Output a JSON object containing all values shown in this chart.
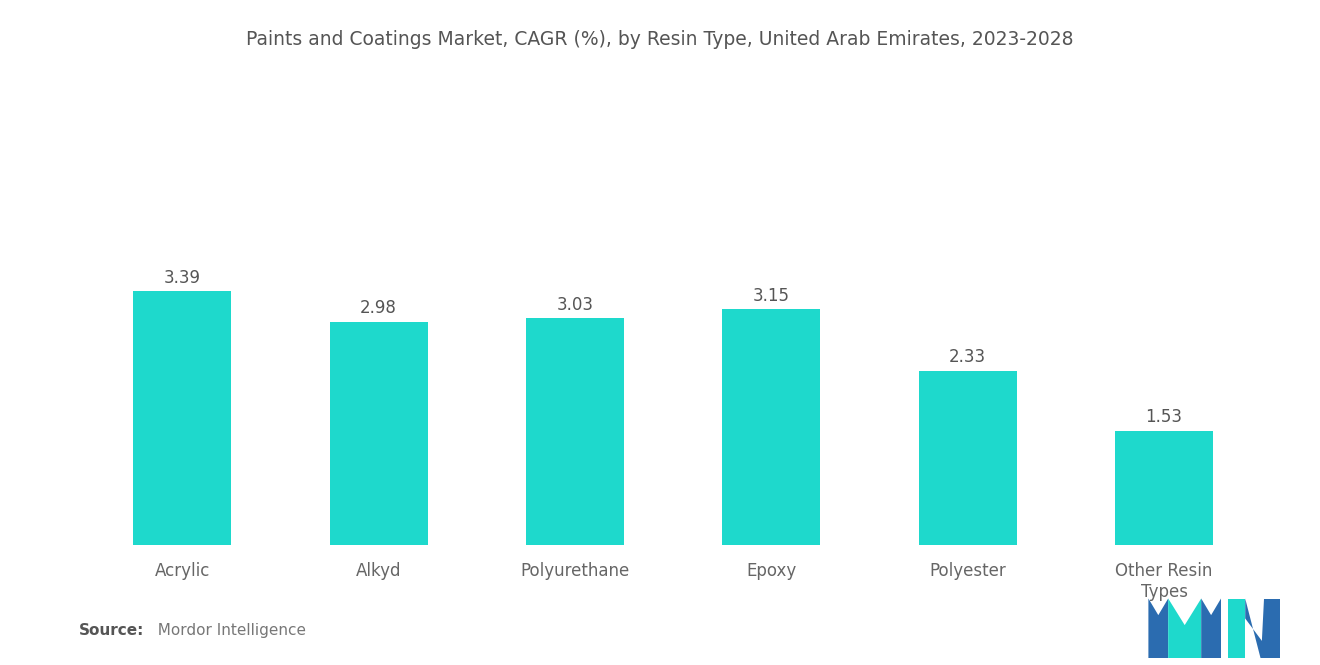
{
  "title": "Paints and Coatings Market, CAGR (%), by Resin Type, United Arab Emirates, 2023-2028",
  "categories": [
    "Acrylic",
    "Alkyd",
    "Polyurethane",
    "Epoxy",
    "Polyester",
    "Other Resin\nTypes"
  ],
  "values": [
    3.39,
    2.98,
    3.03,
    3.15,
    2.33,
    1.53
  ],
  "bar_color": "#1ED9CC",
  "background_color": "#ffffff",
  "title_fontsize": 13.5,
  "value_fontsize": 12,
  "tick_fontsize": 12,
  "ylim": [
    0,
    5.5
  ],
  "bar_width": 0.5,
  "title_color": "#555555",
  "label_color": "#666666",
  "value_color": "#555555",
  "source_bold": "Source:",
  "source_normal": "  Mordor Intelligence",
  "logo_blue": "#2B6CB0",
  "logo_teal": "#1ED9CC"
}
